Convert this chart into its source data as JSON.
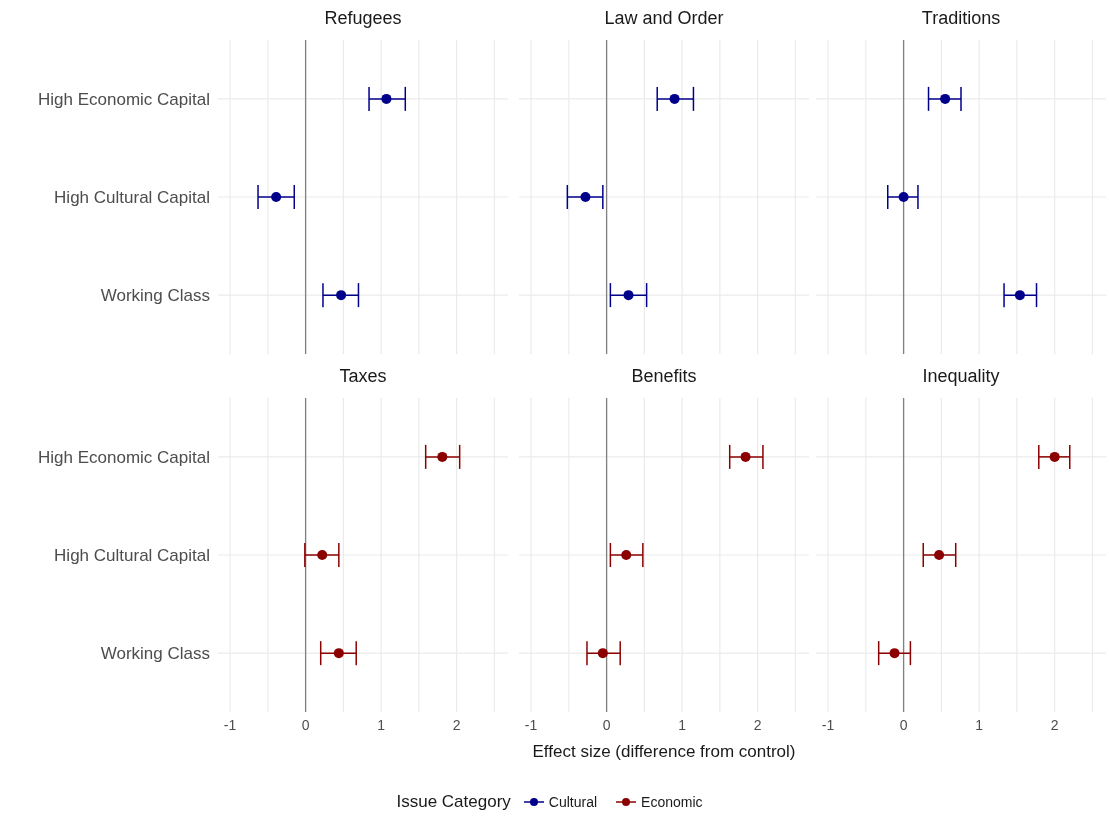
{
  "chart_data": [
    {
      "type": "scatter",
      "title": "Refugees",
      "orientation": "horizontal",
      "categories": [
        "High Economic Capital",
        "High Cultural Capital",
        "Working Class"
      ],
      "series": [
        {
          "name": "Cultural",
          "color": "#00008b",
          "values": [
            1.07,
            -0.39,
            0.47
          ],
          "errors": [
            [
              0.84,
              1.32
            ],
            [
              -0.63,
              -0.15
            ],
            [
              0.23,
              0.7
            ]
          ]
        }
      ],
      "xlim": [
        -1.16,
        2.68
      ],
      "xticks": [
        -1,
        {
          "value": -0.5,
          "label": null
        },
        0,
        {
          "value": 0.5,
          "label": null
        },
        1,
        {
          "value": 1.5,
          "label": null
        },
        2,
        {
          "value": 2.5,
          "label": null
        }
      ],
      "grid": true,
      "marker": "circle",
      "ref_lines": [
        {
          "axis": "x",
          "value": 0,
          "color": "#808080"
        }
      ],
      "tick_labels": "y"
    },
    {
      "type": "scatter",
      "title": "Law and Order",
      "orientation": "horizontal",
      "categories": [
        "High Economic Capital",
        "High Cultural Capital",
        "Working Class"
      ],
      "series": [
        {
          "name": "Cultural",
          "color": "#00008b",
          "values": [
            0.9,
            -0.28,
            0.29
          ],
          "errors": [
            [
              0.67,
              1.15
            ],
            [
              -0.52,
              -0.05
            ],
            [
              0.05,
              0.53
            ]
          ]
        }
      ],
      "xlim": [
        -1.16,
        2.68
      ],
      "xticks": [
        -1,
        {
          "value": -0.5,
          "label": null
        },
        0,
        {
          "value": 0.5,
          "label": null
        },
        1,
        {
          "value": 1.5,
          "label": null
        },
        2,
        {
          "value": 2.5,
          "label": null
        }
      ],
      "grid": true,
      "marker": "circle",
      "ref_lines": [
        {
          "axis": "x",
          "value": 0,
          "color": "#808080"
        }
      ],
      "tick_labels": false
    },
    {
      "type": "scatter",
      "title": "Traditions",
      "orientation": "horizontal",
      "categories": [
        "High Economic Capital",
        "High Cultural Capital",
        "Working Class"
      ],
      "series": [
        {
          "name": "Cultural",
          "color": "#00008b",
          "values": [
            0.55,
            0.0,
            1.54
          ],
          "errors": [
            [
              0.33,
              0.76
            ],
            [
              -0.21,
              0.19
            ],
            [
              1.33,
              1.76
            ]
          ]
        }
      ],
      "xlim": [
        -1.16,
        2.68
      ],
      "xticks": [
        -1,
        {
          "value": -0.5,
          "label": null
        },
        0,
        {
          "value": 0.5,
          "label": null
        },
        1,
        {
          "value": 1.5,
          "label": null
        },
        2,
        {
          "value": 2.5,
          "label": null
        }
      ],
      "grid": true,
      "marker": "circle",
      "ref_lines": [
        {
          "axis": "x",
          "value": 0,
          "color": "#808080"
        }
      ],
      "tick_labels": false
    },
    {
      "type": "scatter",
      "title": "Taxes",
      "orientation": "horizontal",
      "categories": [
        "High Economic Capital",
        "High Cultural Capital",
        "Working Class"
      ],
      "series": [
        {
          "name": "Economic",
          "color": "#8b0000",
          "values": [
            1.81,
            0.22,
            0.44
          ],
          "errors": [
            [
              1.59,
              2.04
            ],
            [
              -0.01,
              0.44
            ],
            [
              0.2,
              0.67
            ]
          ]
        }
      ],
      "xlim": [
        -1.16,
        2.68
      ],
      "xticks": [
        -1,
        {
          "value": -0.5,
          "label": null
        },
        0,
        {
          "value": 0.5,
          "label": null
        },
        1,
        {
          "value": 1.5,
          "label": null
        },
        2,
        {
          "value": 2.5,
          "label": null
        }
      ],
      "grid": true,
      "marker": "circle",
      "ref_lines": [
        {
          "axis": "x",
          "value": 0,
          "color": "#808080"
        }
      ]
    },
    {
      "type": "scatter",
      "title": "Benefits",
      "orientation": "horizontal",
      "xlabel": "Effect size (difference from control)",
      "categories": [
        "High Economic Capital",
        "High Cultural Capital",
        "Working Class"
      ],
      "series": [
        {
          "name": "Economic",
          "color": "#8b0000",
          "values": [
            1.84,
            0.26,
            -0.05
          ],
          "errors": [
            [
              1.63,
              2.07
            ],
            [
              0.05,
              0.48
            ],
            [
              -0.26,
              0.18
            ]
          ]
        }
      ],
      "xlim": [
        -1.16,
        2.68
      ],
      "xticks": [
        -1,
        {
          "value": -0.5,
          "label": null
        },
        0,
        {
          "value": 0.5,
          "label": null
        },
        1,
        {
          "value": 1.5,
          "label": null
        },
        2,
        {
          "value": 2.5,
          "label": null
        }
      ],
      "grid": true,
      "marker": "circle",
      "ref_lines": [
        {
          "axis": "x",
          "value": 0,
          "color": "#808080"
        }
      ],
      "tick_labels": "x"
    },
    {
      "type": "scatter",
      "title": "Inequality",
      "orientation": "horizontal",
      "categories": [
        "High Economic Capital",
        "High Cultural Capital",
        "Working Class"
      ],
      "series": [
        {
          "name": "Economic",
          "color": "#8b0000",
          "values": [
            2.0,
            0.47,
            -0.12
          ],
          "errors": [
            [
              1.79,
              2.2
            ],
            [
              0.26,
              0.69
            ],
            [
              -0.33,
              0.09
            ]
          ]
        }
      ],
      "xlim": [
        -1.16,
        2.68
      ],
      "xticks": [
        -1,
        {
          "value": -0.5,
          "label": null
        },
        0,
        {
          "value": 0.5,
          "label": null
        },
        1,
        {
          "value": 1.5,
          "label": null
        },
        2,
        {
          "value": 2.5,
          "label": null
        }
      ],
      "grid": true,
      "marker": "circle",
      "ref_lines": [
        {
          "axis": "x",
          "value": 0,
          "color": "#808080"
        }
      ],
      "tick_labels": "x",
      "legend": "bottom",
      "legend_title": "Issue Category"
    }
  ]
}
